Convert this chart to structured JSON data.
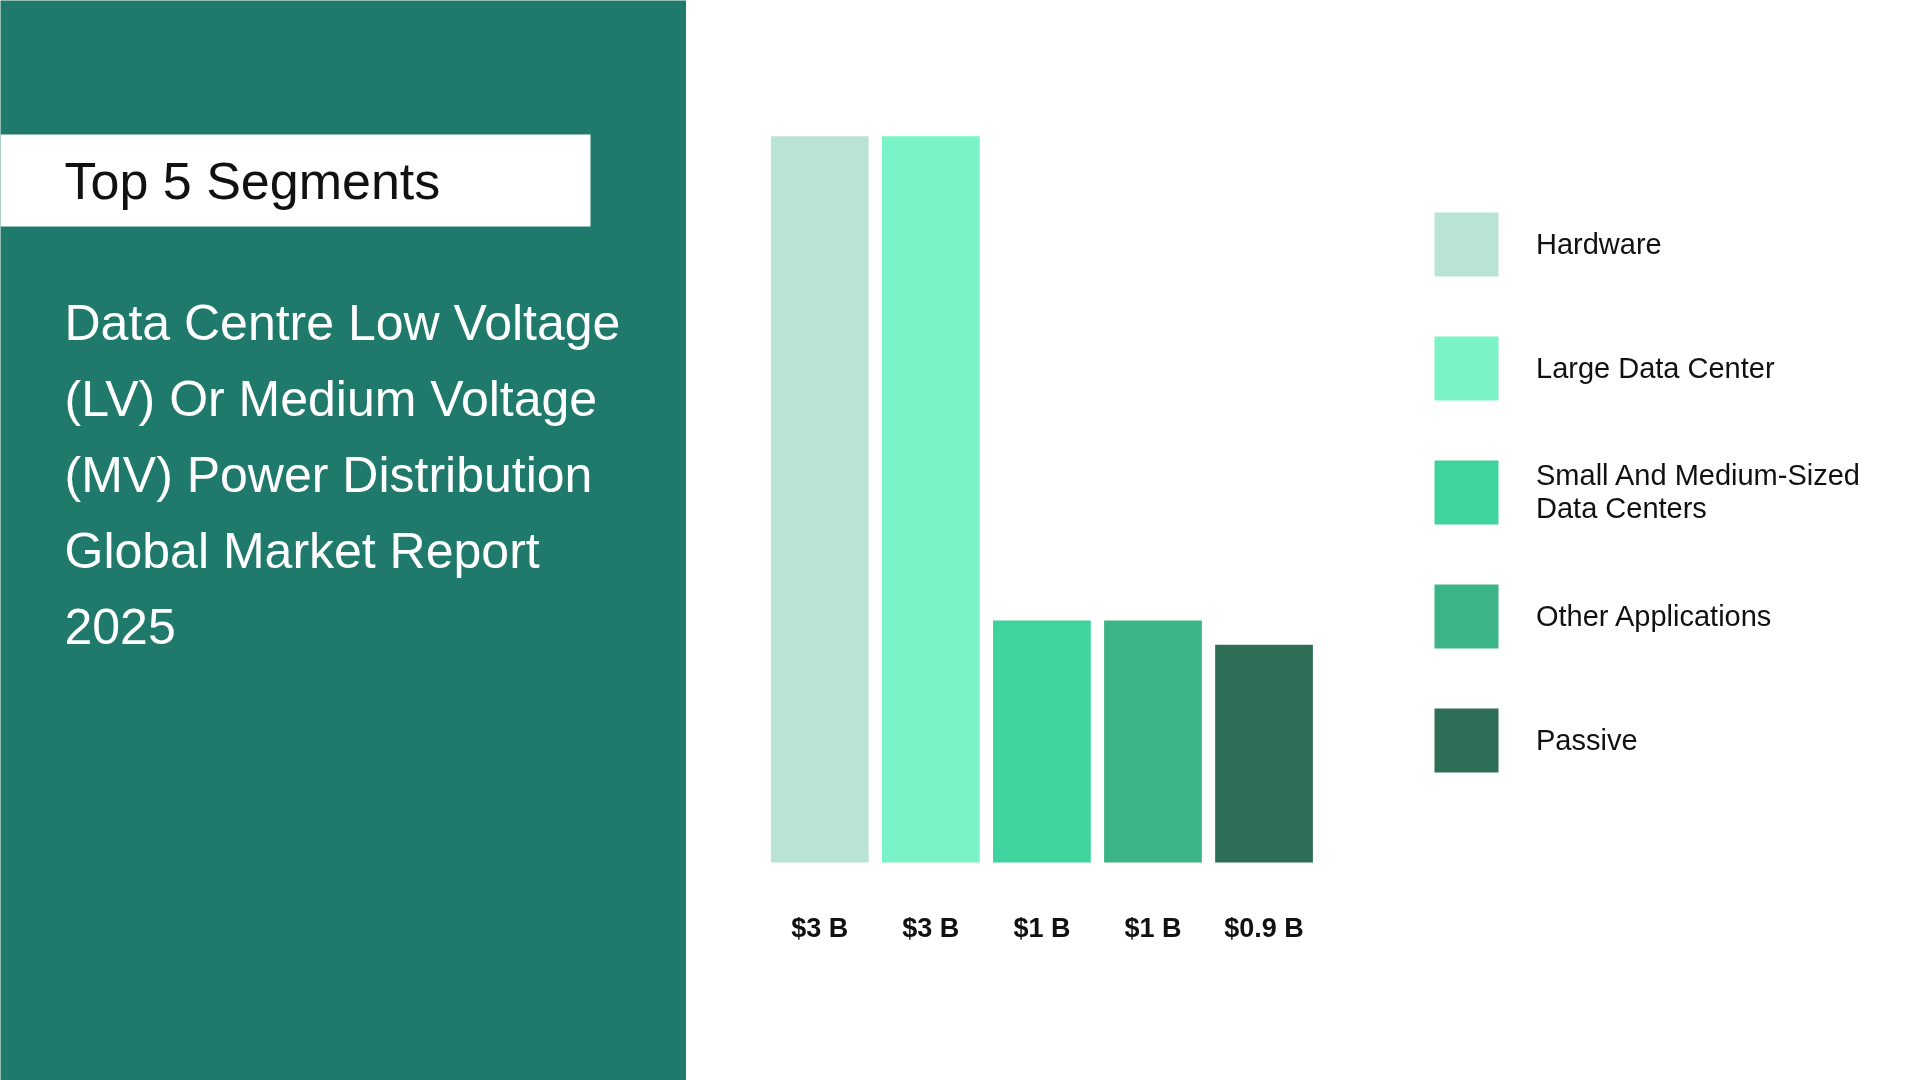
{
  "chart_data": {
    "type": "bar",
    "title": "Top 5 Segments",
    "subtitle": "Data Centre Low Voltage (LV) Or Medium Voltage (MV) Power Distribution Global Market Report 2025",
    "categories": [
      null,
      null,
      null,
      null,
      null
    ],
    "stacked": true,
    "series": [
      {
        "name": "Hardware",
        "color": "#b9e3d4",
        "values": [
          3,
          null,
          null,
          null,
          null
        ],
        "value_labels": [
          "$3 B",
          null,
          null,
          null,
          null
        ]
      },
      {
        "name": "Large Data Center",
        "color": "#7af3c6",
        "values": [
          null,
          3,
          null,
          null,
          null
        ],
        "value_labels": [
          null,
          "$3 B",
          null,
          null,
          null
        ]
      },
      {
        "name": "Small And Medium-Sized Data Centers",
        "color": "#3fd49d",
        "values": [
          null,
          null,
          1,
          null,
          null
        ],
        "value_labels": [
          null,
          null,
          "$1 B",
          null,
          null
        ]
      },
      {
        "name": "Other Applications",
        "color": "#3bb587",
        "values": [
          null,
          null,
          null,
          1,
          null
        ],
        "value_labels": [
          null,
          null,
          null,
          "$1 B",
          null
        ]
      },
      {
        "name": "Passive",
        "color": "#2e6e57",
        "values": [
          null,
          null,
          null,
          null,
          0.9
        ],
        "value_labels": [
          null,
          null,
          null,
          null,
          "$0.9 B"
        ]
      }
    ],
    "legend": "right"
  }
}
